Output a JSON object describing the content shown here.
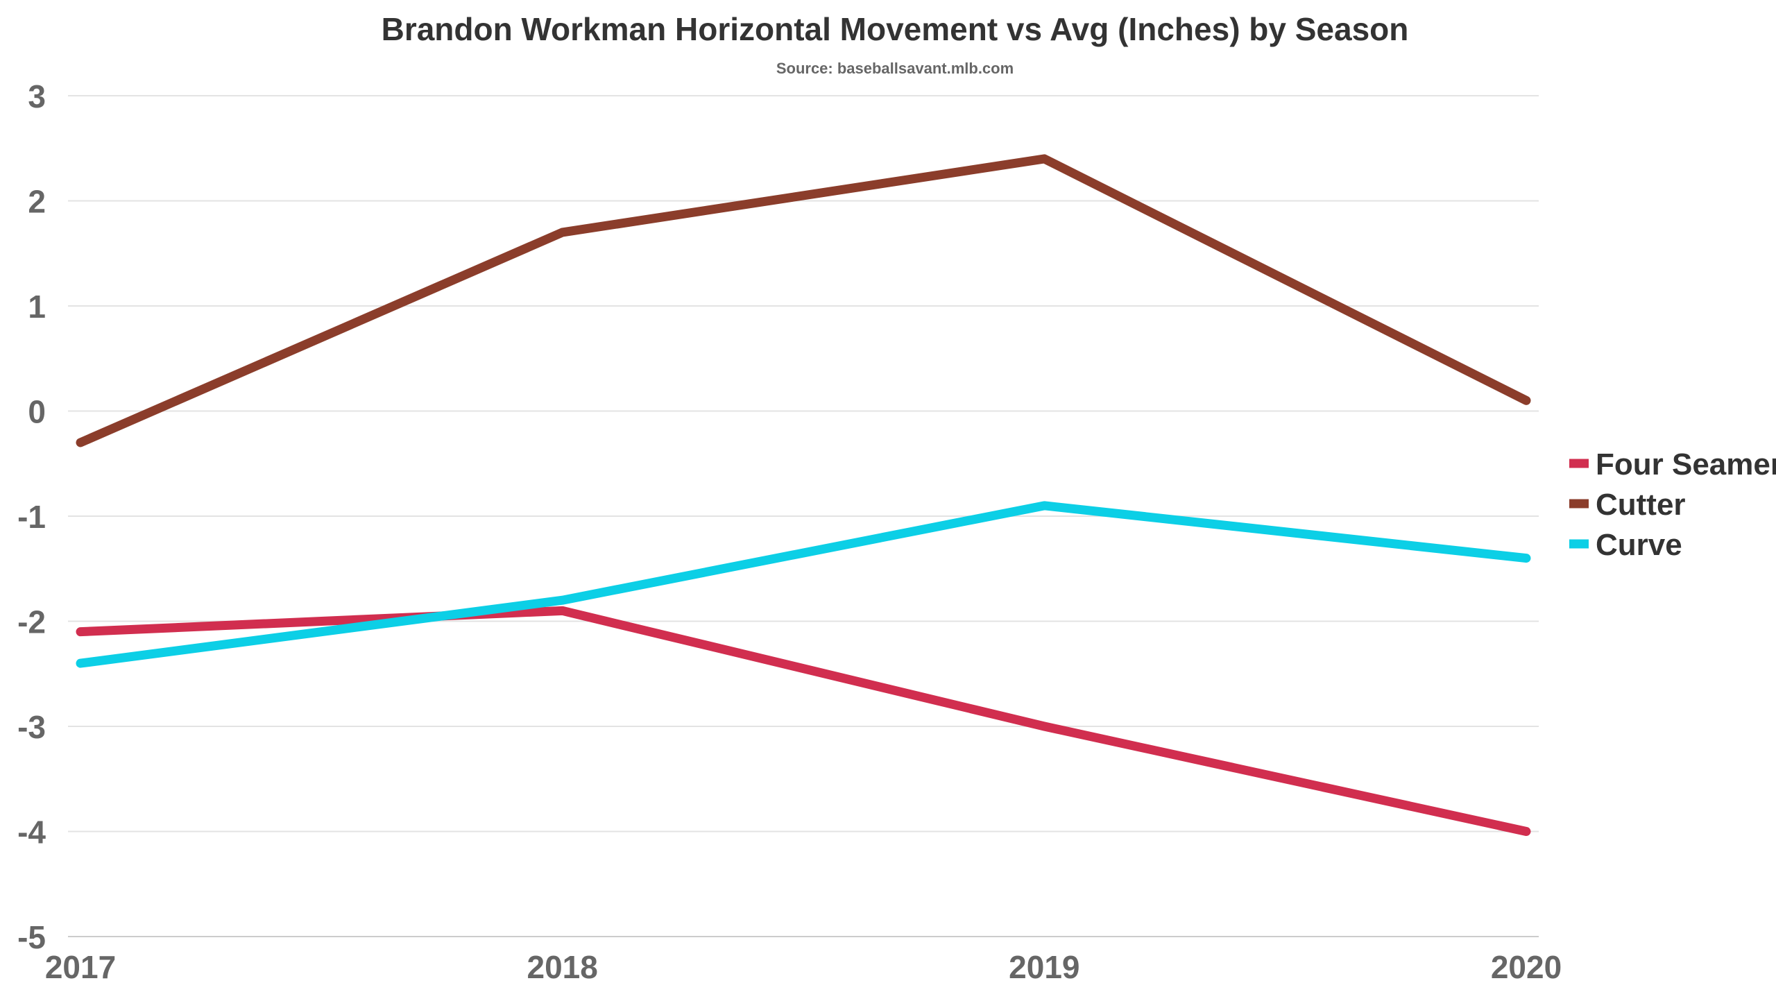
{
  "chart_data": {
    "type": "line",
    "title": "Brandon Workman Horizontal Movement vs Avg (Inches) by Season",
    "subtitle": "Source: baseballsavant.mlb.com",
    "xlabel": "",
    "ylabel": "",
    "categories": [
      "2017",
      "2018",
      "2019",
      "2020"
    ],
    "ylim": [
      -5,
      3
    ],
    "yticks": [
      3,
      2,
      1,
      0,
      -1,
      -2,
      -3,
      -4,
      -5
    ],
    "grid": true,
    "legend_position": "right",
    "series": [
      {
        "name": "Four Seamer",
        "color": "#d12e4f",
        "values": [
          -2.1,
          -1.9,
          -3.0,
          -4.0
        ]
      },
      {
        "name": "Cutter",
        "color": "#8b3d2b",
        "values": [
          -0.3,
          1.7,
          2.4,
          0.1
        ]
      },
      {
        "name": "Curve",
        "color": "#0ccfe6",
        "values": [
          -2.4,
          -1.8,
          -0.9,
          -1.4
        ]
      }
    ]
  }
}
